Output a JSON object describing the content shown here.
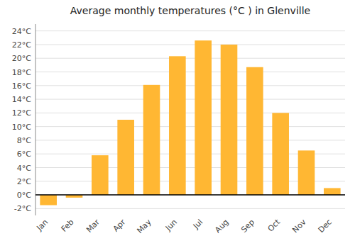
{
  "chart_data": {
    "type": "bar",
    "title": "Average monthly temperatures (°C ) in Glenville",
    "categories": [
      "Jan",
      "Feb",
      "Mar",
      "Apr",
      "May",
      "Jun",
      "Jul",
      "Aug",
      "Sep",
      "Oct",
      "Nov",
      "Dec"
    ],
    "values": [
      -1.5,
      -0.4,
      5.8,
      11.0,
      16.1,
      20.3,
      22.6,
      22.0,
      18.7,
      12.0,
      6.5,
      1.0
    ],
    "color": "#FFB733",
    "ylim": [
      -3,
      25
    ],
    "yticks": [
      {
        "value": -2,
        "label": "-2°C"
      },
      {
        "value": 0,
        "label": "0°C"
      },
      {
        "value": 2,
        "label": "2°C"
      },
      {
        "value": 4,
        "label": "4°C"
      },
      {
        "value": 6,
        "label": "6°C"
      },
      {
        "value": 8,
        "label": "8°C"
      },
      {
        "value": 10,
        "label": "10°C"
      },
      {
        "value": 12,
        "label": "12°C"
      },
      {
        "value": 14,
        "label": "14°C"
      },
      {
        "value": 16,
        "label": "16°C"
      },
      {
        "value": 18,
        "label": "18°C"
      },
      {
        "value": 20,
        "label": "20°C"
      },
      {
        "value": 22,
        "label": "22°C"
      },
      {
        "value": 24,
        "label": "24°C"
      }
    ],
    "grid": true
  }
}
